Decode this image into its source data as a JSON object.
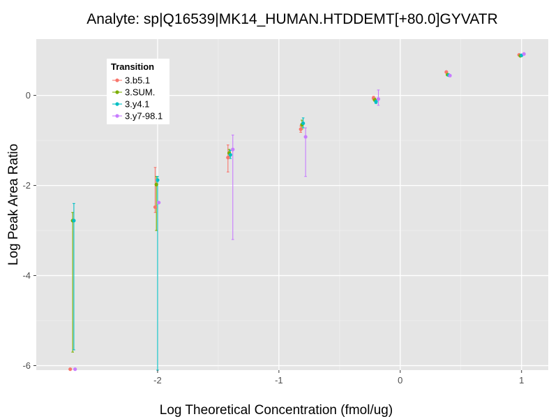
{
  "chart_data": {
    "type": "scatter",
    "title": "Analyte: sp|Q16539|MK14_HUMAN.HTDDEMT[+80.0]GYVATR",
    "xlabel": "Log Theoretical Concentration (fmol/ug)",
    "ylabel": "Log Peak Area Ratio",
    "xlim": [
      -3.0,
      1.22
    ],
    "ylim": [
      -6.1,
      1.25
    ],
    "x_ticks": [
      -2,
      -1,
      0,
      1
    ],
    "x_tick_labels": [
      "-2",
      "-1",
      "0",
      "1"
    ],
    "y_ticks": [
      0,
      -2,
      -4,
      -6
    ],
    "y_tick_labels": [
      "0",
      "-2",
      "-4",
      "-6"
    ],
    "grid": true,
    "background": "#e5e5e5",
    "legend": {
      "title": "Transition",
      "position": "top-left inside",
      "entries": [
        "3.b5.1",
        "3.SUM.",
        "3.y4.1",
        "3.y7-98.1"
      ]
    },
    "series": [
      {
        "name": "3.b5.1",
        "color": "#f8766d",
        "points": [
          {
            "x": -2.72,
            "y": -6.08
          },
          {
            "x": -2.02,
            "y": -2.48,
            "ymin": -2.6,
            "ymax": -1.6
          },
          {
            "x": -1.42,
            "y": -1.38,
            "ymin": -1.7,
            "ymax": -1.1
          },
          {
            "x": -0.82,
            "y": -0.75,
            "ymin": -0.82,
            "ymax": -0.68
          },
          {
            "x": -0.22,
            "y": -0.06,
            "ymin": -0.1,
            "ymax": -0.02
          },
          {
            "x": 0.38,
            "y": 0.52
          },
          {
            "x": 0.98,
            "y": 0.9
          }
        ]
      },
      {
        "name": "3.SUM.",
        "color": "#7cae00",
        "points": [
          {
            "x": -2.7,
            "y": -2.78,
            "ymin": -5.7,
            "ymax": -2.6
          },
          {
            "x": -2.01,
            "y": -1.98,
            "ymin": -3.0,
            "ymax": -1.8
          },
          {
            "x": -1.41,
            "y": -1.28,
            "ymin": -1.35,
            "ymax": -1.2
          },
          {
            "x": -0.81,
            "y": -0.65,
            "ymin": -0.75,
            "ymax": -0.55
          },
          {
            "x": -0.21,
            "y": -0.1,
            "ymin": -0.13,
            "ymax": -0.06
          },
          {
            "x": 0.39,
            "y": 0.46
          },
          {
            "x": 0.99,
            "y": 0.88
          }
        ]
      },
      {
        "name": "3.y4.1",
        "color": "#00bfc4",
        "points": [
          {
            "x": -2.69,
            "y": -2.78,
            "ymin": -5.65,
            "ymax": -2.4
          },
          {
            "x": -2.0,
            "y": -1.88,
            "ymin": -6.1,
            "ymax": -1.8
          },
          {
            "x": -1.4,
            "y": -1.32,
            "ymin": -1.4,
            "ymax": -1.22
          },
          {
            "x": -0.8,
            "y": -0.62,
            "ymin": -0.72,
            "ymax": -0.5
          },
          {
            "x": -0.2,
            "y": -0.14,
            "ymin": -0.18,
            "ymax": -0.09
          },
          {
            "x": 0.4,
            "y": 0.45
          },
          {
            "x": 1.0,
            "y": 0.89
          }
        ]
      },
      {
        "name": "3.y7-98.1",
        "color": "#c77cff",
        "points": [
          {
            "x": -2.68,
            "y": -6.08
          },
          {
            "x": -1.99,
            "y": -2.38
          },
          {
            "x": -1.38,
            "y": -1.2,
            "ymin": -3.2,
            "ymax": -0.88
          },
          {
            "x": -0.78,
            "y": -0.92,
            "ymin": -1.8,
            "ymax": -0.72
          },
          {
            "x": -0.18,
            "y": -0.08,
            "ymin": -0.22,
            "ymax": 0.12
          },
          {
            "x": 0.41,
            "y": 0.44
          },
          {
            "x": 1.02,
            "y": 0.92
          }
        ]
      }
    ]
  }
}
